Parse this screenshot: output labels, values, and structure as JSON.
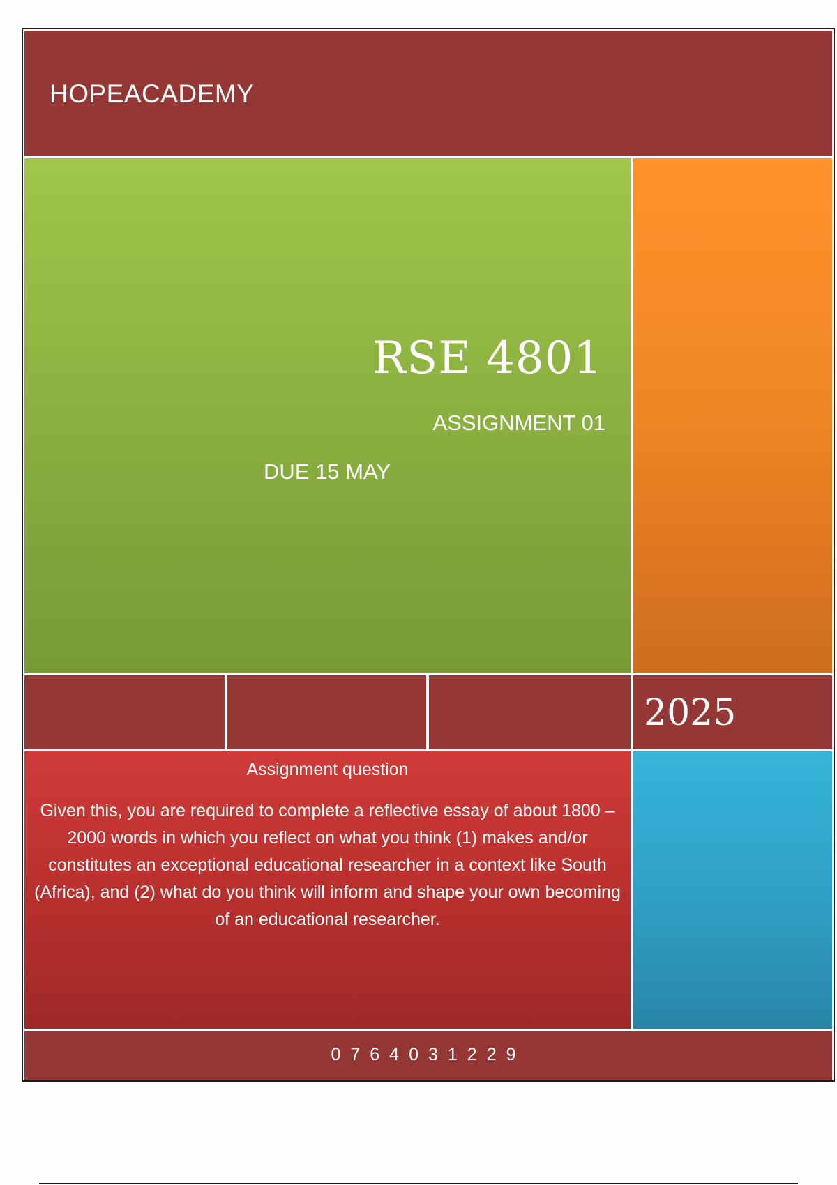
{
  "header": {
    "org_name": "HOPEACADEMY"
  },
  "title_block": {
    "course_code": "RSE 4801",
    "assignment": "ASSIGNMENT 01",
    "due": "DUE 15 MAY"
  },
  "band": {
    "year": "2025"
  },
  "question": {
    "heading": "Assignment question",
    "body": "Given this, you are required to complete a reflective essay of about 1800 – 2000 words in which you reflect on what you think (1) makes and/or constitutes an exceptional educational researcher in a context like South (Africa), and (2) what do you think will inform and shape your own becoming of an educational researcher."
  },
  "footer": {
    "phone": "0764031229"
  },
  "colors": {
    "maroon": "#953735",
    "green": "#8bb040",
    "orange": "#ef8624",
    "red": "#b72f2d",
    "blue": "#2f9fc4"
  }
}
